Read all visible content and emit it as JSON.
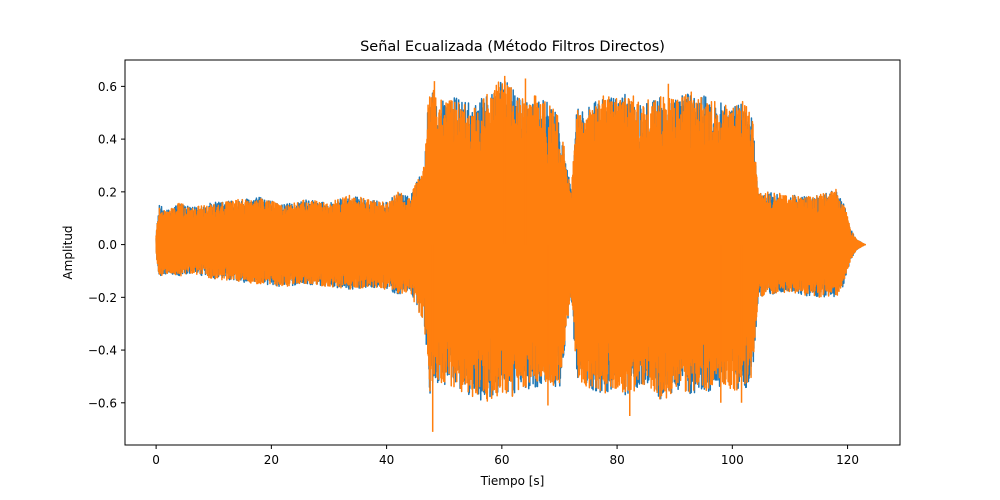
{
  "chart_data": {
    "type": "line",
    "title": "Señal Ecualizada (Método Filtros Directos)",
    "xlabel": "Tiempo [s]",
    "ylabel": "Amplitud",
    "xlim": [
      -5.4,
      129.1
    ],
    "ylim": [
      -0.76,
      0.7
    ],
    "xticks": [
      0,
      20,
      40,
      60,
      80,
      100,
      120
    ],
    "yticks": [
      -0.6,
      -0.4,
      -0.2,
      0.0,
      0.2,
      0.4,
      0.6
    ],
    "xtick_labels": [
      "0",
      "20",
      "40",
      "60",
      "80",
      "100",
      "120"
    ],
    "ytick_labels": [
      "−0.6",
      "−0.4",
      "−0.2",
      "0.0",
      "0.2",
      "0.4",
      "0.6"
    ],
    "grid": false,
    "legend": "none",
    "series": [
      {
        "color": "#1f77b4",
        "envelope": {
          "x": [
            0,
            0.5,
            2,
            4,
            6,
            8,
            10,
            14,
            18,
            22,
            26,
            30,
            34,
            37,
            40,
            42,
            44,
            46.5,
            47.5,
            49,
            52,
            55,
            58,
            60,
            62,
            64,
            66,
            68,
            70,
            71.5,
            72,
            73,
            75,
            78,
            80,
            82,
            84,
            86,
            88,
            90,
            92,
            94,
            96,
            98,
            100,
            102,
            103.5,
            104.5,
            106,
            110,
            114,
            118,
            119.5,
            120.5,
            121.5,
            123
          ],
          "upper": [
            0.04,
            0.15,
            0.13,
            0.16,
            0.14,
            0.15,
            0.16,
            0.17,
            0.18,
            0.15,
            0.17,
            0.16,
            0.19,
            0.17,
            0.16,
            0.2,
            0.18,
            0.3,
            0.63,
            0.55,
            0.56,
            0.53,
            0.58,
            0.64,
            0.59,
            0.55,
            0.58,
            0.54,
            0.48,
            0.28,
            0.2,
            0.53,
            0.52,
            0.57,
            0.56,
            0.58,
            0.54,
            0.58,
            0.56,
            0.55,
            0.58,
            0.58,
            0.55,
            0.54,
            0.52,
            0.55,
            0.48,
            0.2,
            0.2,
            0.19,
            0.18,
            0.21,
            0.15,
            0.06,
            0.02,
            0.0
          ],
          "lower": [
            -0.04,
            -0.12,
            -0.11,
            -0.12,
            -0.11,
            -0.12,
            -0.13,
            -0.14,
            -0.15,
            -0.16,
            -0.15,
            -0.16,
            -0.17,
            -0.16,
            -0.17,
            -0.19,
            -0.18,
            -0.3,
            -0.57,
            -0.52,
            -0.55,
            -0.58,
            -0.6,
            -0.56,
            -0.58,
            -0.55,
            -0.54,
            -0.52,
            -0.55,
            -0.28,
            -0.2,
            -0.5,
            -0.55,
            -0.57,
            -0.55,
            -0.58,
            -0.53,
            -0.55,
            -0.6,
            -0.55,
            -0.57,
            -0.57,
            -0.56,
            -0.54,
            -0.55,
            -0.56,
            -0.5,
            -0.2,
            -0.19,
            -0.18,
            -0.2,
            -0.2,
            -0.15,
            -0.06,
            -0.02,
            0.0
          ]
        }
      },
      {
        "color": "#ff7f0e",
        "envelope": {
          "x": [
            0,
            0.5,
            2,
            4,
            6,
            8,
            10,
            14,
            18,
            22,
            26,
            30,
            34,
            37,
            40,
            42,
            44,
            46.5,
            47.5,
            49,
            52,
            55,
            58,
            60,
            62,
            64,
            66,
            68,
            70,
            71.5,
            72,
            73,
            75,
            78,
            80,
            82,
            84,
            86,
            88,
            90,
            92,
            94,
            96,
            98,
            100,
            102,
            103.5,
            104.5,
            106,
            110,
            114,
            118,
            119.5,
            120.5,
            121.5,
            123
          ],
          "upper": [
            0.04,
            0.15,
            0.13,
            0.16,
            0.14,
            0.15,
            0.16,
            0.17,
            0.18,
            0.15,
            0.17,
            0.16,
            0.19,
            0.17,
            0.16,
            0.2,
            0.18,
            0.3,
            0.63,
            0.55,
            0.56,
            0.53,
            0.58,
            0.64,
            0.59,
            0.55,
            0.58,
            0.54,
            0.48,
            0.28,
            0.2,
            0.53,
            0.52,
            0.57,
            0.56,
            0.58,
            0.54,
            0.58,
            0.56,
            0.55,
            0.58,
            0.58,
            0.55,
            0.54,
            0.52,
            0.55,
            0.48,
            0.2,
            0.2,
            0.19,
            0.18,
            0.21,
            0.15,
            0.06,
            0.02,
            0.0
          ],
          "lower": [
            -0.04,
            -0.12,
            -0.11,
            -0.12,
            -0.11,
            -0.12,
            -0.13,
            -0.14,
            -0.15,
            -0.16,
            -0.15,
            -0.16,
            -0.17,
            -0.16,
            -0.17,
            -0.19,
            -0.18,
            -0.3,
            -0.57,
            -0.52,
            -0.55,
            -0.58,
            -0.6,
            -0.56,
            -0.58,
            -0.55,
            -0.54,
            -0.52,
            -0.55,
            -0.28,
            -0.2,
            -0.5,
            -0.55,
            -0.57,
            -0.55,
            -0.58,
            -0.53,
            -0.55,
            -0.6,
            -0.55,
            -0.57,
            -0.57,
            -0.56,
            -0.54,
            -0.55,
            -0.56,
            -0.5,
            -0.2,
            -0.19,
            -0.18,
            -0.2,
            -0.2,
            -0.15,
            -0.06,
            -0.02,
            0.0
          ]
        },
        "peaks": [
          {
            "x": 48.0,
            "y": -0.71
          },
          {
            "x": 48.3,
            "y": 0.62
          },
          {
            "x": 60.5,
            "y": 0.64
          },
          {
            "x": 64.1,
            "y": 0.63
          },
          {
            "x": 68.0,
            "y": -0.61
          },
          {
            "x": 82.2,
            "y": -0.65
          },
          {
            "x": 88.9,
            "y": 0.61
          },
          {
            "x": 98.0,
            "y": -0.6
          },
          {
            "x": 101.6,
            "y": -0.6
          }
        ],
        "end_x": 123.2
      }
    ]
  }
}
